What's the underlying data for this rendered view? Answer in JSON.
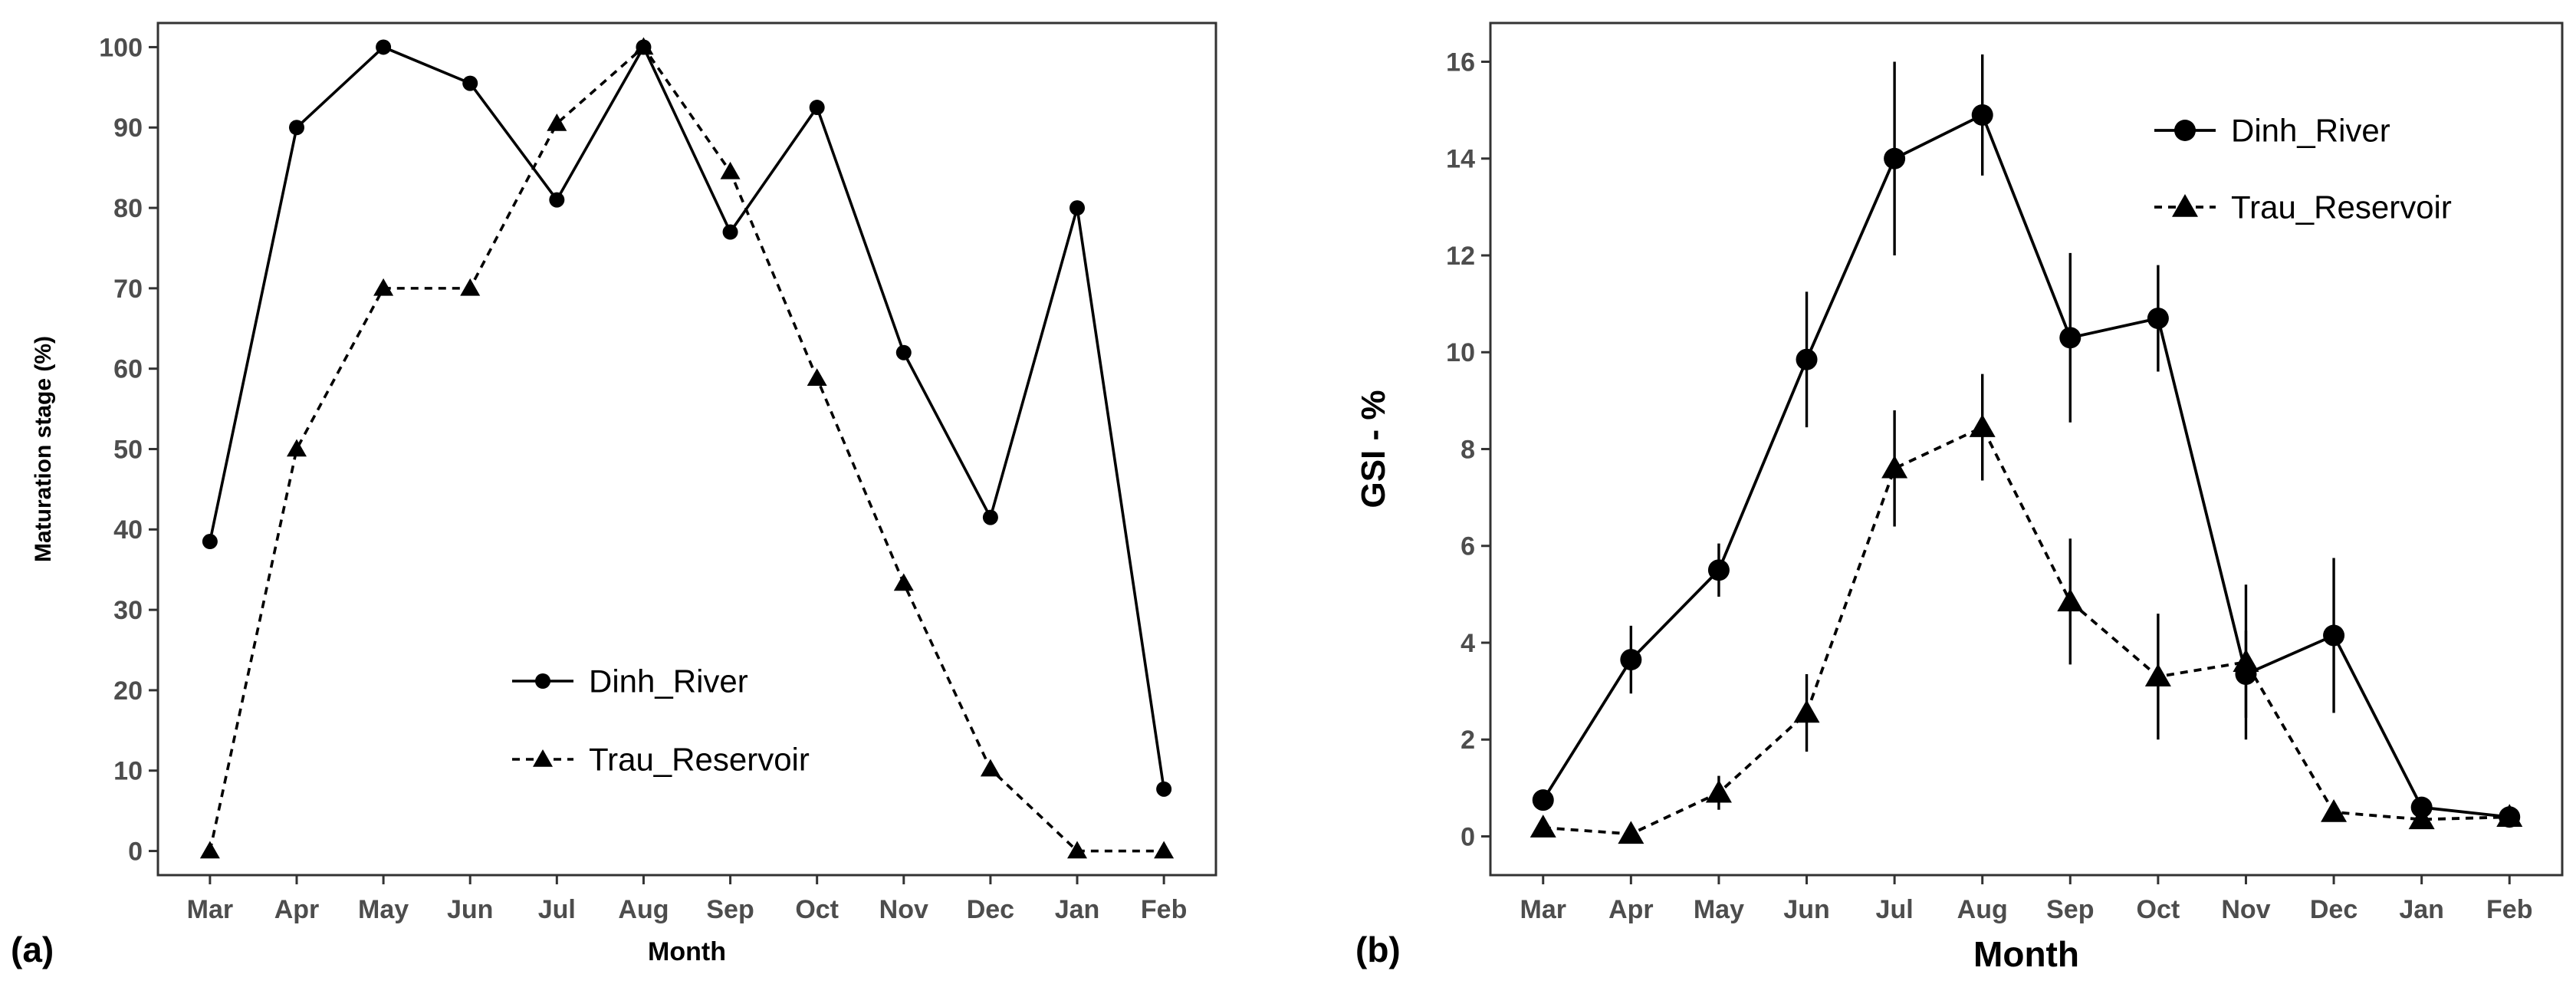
{
  "figure": {
    "panel_labels": [
      "(a)",
      "(b)"
    ]
  },
  "chart_data": [
    {
      "type": "line",
      "panel": "(a)",
      "title": "",
      "xlabel": "Month",
      "ylabel": "Maturation stage (%)",
      "categories": [
        "Mar",
        "Apr",
        "May",
        "Jun",
        "Jul",
        "Aug",
        "Sep",
        "Oct",
        "Nov",
        "Dec",
        "Jan",
        "Feb"
      ],
      "ylim": [
        -3,
        103
      ],
      "yticks": [
        0,
        10,
        20,
        30,
        40,
        50,
        60,
        70,
        80,
        90,
        100
      ],
      "grid": false,
      "legend_position": "bottom-center",
      "series": [
        {
          "name": "Dinh_River",
          "marker": "circle",
          "line": "solid",
          "values": [
            38.5,
            90,
            100,
            95.5,
            81,
            100,
            77,
            92.5,
            62,
            41.5,
            80,
            7.7
          ]
        },
        {
          "name": "Trau_Reservoir",
          "marker": "triangle",
          "line": "dashed",
          "values": [
            0,
            50,
            70,
            70,
            90.5,
            100,
            84.5,
            58.8,
            33.3,
            10.2,
            0,
            0
          ]
        }
      ]
    },
    {
      "type": "line",
      "panel": "(b)",
      "title": "",
      "xlabel": "Month",
      "ylabel": "GSI - %",
      "categories": [
        "Mar",
        "Apr",
        "May",
        "Jun",
        "Jul",
        "Aug",
        "Sep",
        "Oct",
        "Nov",
        "Dec",
        "Jan",
        "Feb"
      ],
      "ylim": [
        -0.8,
        16.8
      ],
      "yticks": [
        0,
        2,
        4,
        6,
        8,
        10,
        12,
        14,
        16
      ],
      "grid": false,
      "legend_position": "top-right",
      "series": [
        {
          "name": "Dinh_River",
          "marker": "circle",
          "line": "solid",
          "values": [
            0.75,
            3.65,
            5.5,
            9.85,
            14.0,
            14.9,
            10.3,
            10.7,
            3.35,
            4.15,
            0.6,
            0.4
          ],
          "errors": [
            0,
            0.7,
            0.55,
            1.4,
            2.0,
            1.25,
            1.75,
            1.1,
            0.9,
            1.6,
            0,
            0
          ]
        },
        {
          "name": "Trau_Reservoir",
          "marker": "triangle",
          "line": "dashed",
          "values": [
            0.18,
            0.05,
            0.9,
            2.55,
            7.6,
            8.45,
            4.85,
            3.3,
            3.6,
            0.5,
            0.35,
            0.4
          ],
          "errors": [
            0,
            0,
            0.35,
            0.8,
            1.2,
            1.1,
            1.3,
            1.3,
            1.6,
            0,
            0,
            0
          ]
        }
      ]
    }
  ]
}
